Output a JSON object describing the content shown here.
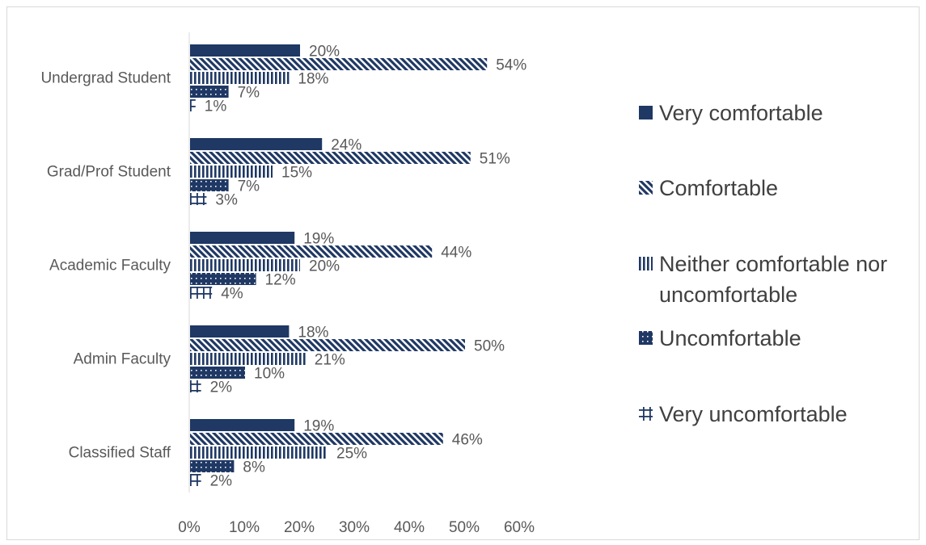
{
  "chart_data": {
    "type": "bar",
    "orientation": "horizontal",
    "categories": [
      "Undergrad Student",
      "Grad/Prof Student",
      "Academic Faculty",
      "Admin Faculty",
      "Classified Staff"
    ],
    "series": [
      {
        "name": "Very comfortable",
        "values": [
          20,
          24,
          19,
          18,
          19
        ],
        "pattern": "solid"
      },
      {
        "name": "Comfortable",
        "values": [
          54,
          51,
          44,
          50,
          46
        ],
        "pattern": "diagonal"
      },
      {
        "name": "Neither comfortable nor uncomfortable",
        "values": [
          18,
          15,
          20,
          21,
          25
        ],
        "pattern": "vertical"
      },
      {
        "name": "Uncomfortable",
        "values": [
          7,
          7,
          12,
          10,
          8
        ],
        "pattern": "dots"
      },
      {
        "name": "Very uncomfortable",
        "values": [
          1,
          3,
          4,
          2,
          2
        ],
        "pattern": "grid"
      }
    ],
    "value_labels": [
      [
        "20%",
        "54%",
        "18%",
        "7%",
        "1%"
      ],
      [
        "24%",
        "51%",
        "15%",
        "7%",
        "3%"
      ],
      [
        "19%",
        "44%",
        "20%",
        "12%",
        "4%"
      ],
      [
        "18%",
        "50%",
        "21%",
        "10%",
        "2%"
      ],
      [
        "19%",
        "46%",
        "25%",
        "8%",
        "2%"
      ]
    ],
    "x_ticks": [
      "0%",
      "10%",
      "20%",
      "30%",
      "40%",
      "50%",
      "60%"
    ],
    "xlim": [
      0,
      60
    ],
    "title": "",
    "xlabel": "",
    "ylabel": "",
    "grid": false,
    "legend_position": "right",
    "bar_color": "#1f3864",
    "text_color": "#595959"
  }
}
